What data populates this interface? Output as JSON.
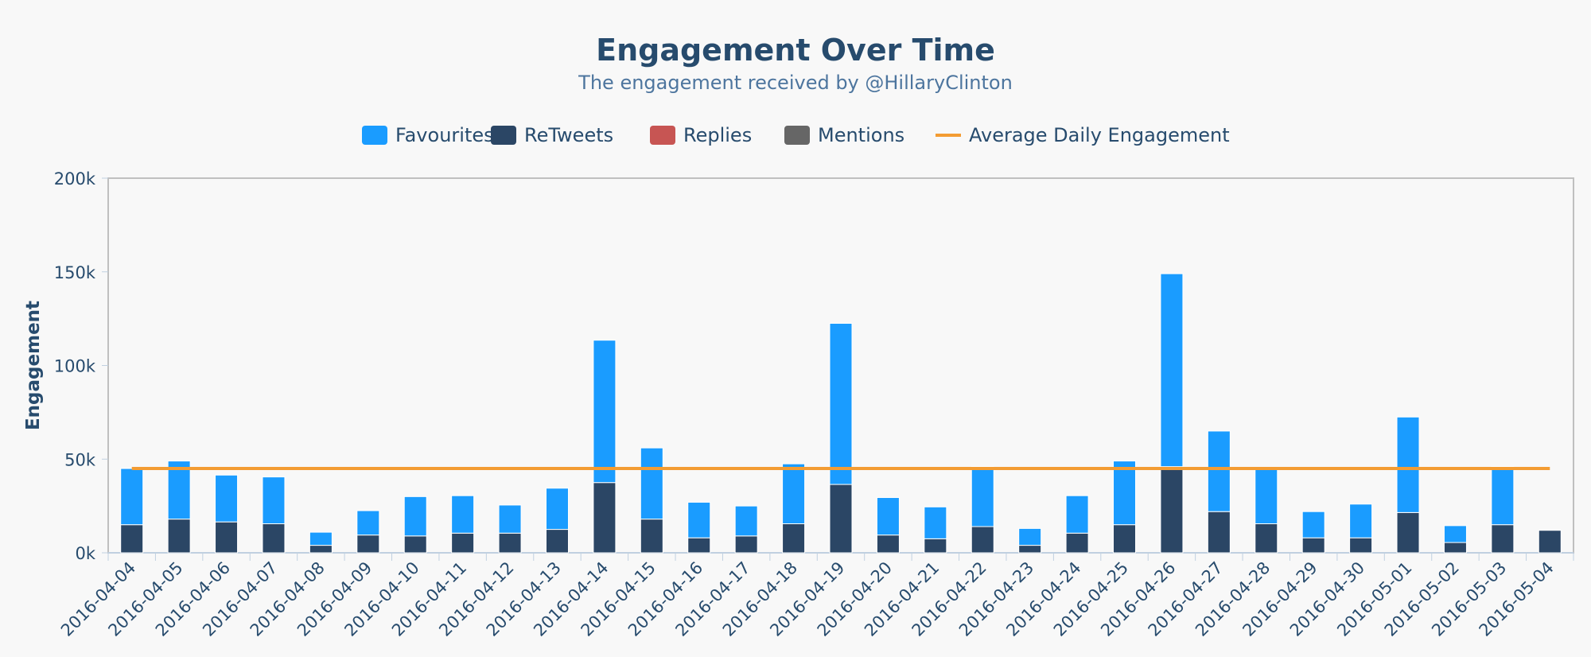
{
  "chart_data": {
    "type": "bar",
    "stacked": true,
    "title": "Engagement Over Time",
    "subtitle": "The engagement received by @HillaryClinton",
    "xlabel": "",
    "ylabel": "Engagement",
    "ylim": [
      0,
      200000
    ],
    "y_ticks": [
      0,
      50000,
      100000,
      150000,
      200000
    ],
    "y_tick_labels": [
      "0k",
      "50k",
      "100k",
      "150k",
      "200k"
    ],
    "grid": false,
    "legend_position": "top",
    "categories": [
      "2016-04-04",
      "2016-04-05",
      "2016-04-06",
      "2016-04-07",
      "2016-04-08",
      "2016-04-09",
      "2016-04-10",
      "2016-04-11",
      "2016-04-12",
      "2016-04-13",
      "2016-04-14",
      "2016-04-15",
      "2016-04-16",
      "2016-04-17",
      "2016-04-18",
      "2016-04-19",
      "2016-04-20",
      "2016-04-21",
      "2016-04-22",
      "2016-04-23",
      "2016-04-24",
      "2016-04-25",
      "2016-04-26",
      "2016-04-27",
      "2016-04-28",
      "2016-04-29",
      "2016-04-30",
      "2016-05-01",
      "2016-05-02",
      "2016-05-03",
      "2016-05-04"
    ],
    "series": [
      {
        "name": "Favourites",
        "color": "#1a9cff",
        "values": [
          30000,
          31000,
          25000,
          25000,
          7000,
          13000,
          21000,
          20000,
          15000,
          22000,
          76000,
          38000,
          19000,
          16000,
          32000,
          86000,
          20000,
          17000,
          32000,
          9000,
          20000,
          34000,
          103000,
          43000,
          30000,
          14000,
          18000,
          51000,
          9000,
          31000,
          0
        ]
      },
      {
        "name": "ReTweets",
        "color": "#2b4665",
        "values": [
          15000,
          18000,
          16500,
          15500,
          4000,
          9500,
          9000,
          10500,
          10500,
          12500,
          37500,
          18000,
          8000,
          9000,
          15500,
          36500,
          9500,
          7500,
          14000,
          4000,
          10500,
          15000,
          46000,
          22000,
          15500,
          8000,
          8000,
          21500,
          5500,
          15000,
          12000
        ]
      },
      {
        "name": "Replies",
        "color": "#c75553",
        "values": [
          0,
          0,
          0,
          0,
          0,
          0,
          0,
          0,
          0,
          0,
          0,
          0,
          0,
          0,
          0,
          0,
          0,
          0,
          0,
          0,
          0,
          0,
          0,
          0,
          0,
          0,
          0,
          0,
          0,
          0,
          0
        ]
      },
      {
        "name": "Mentions",
        "color": "#666666",
        "values": [
          0,
          0,
          0,
          0,
          0,
          0,
          0,
          0,
          0,
          0,
          0,
          0,
          0,
          0,
          0,
          0,
          0,
          0,
          0,
          0,
          0,
          0,
          0,
          0,
          0,
          0,
          0,
          0,
          0,
          0,
          0
        ]
      }
    ],
    "reference_line": {
      "name": "Average Daily Engagement",
      "color": "#f39c33",
      "value": 45000
    }
  }
}
